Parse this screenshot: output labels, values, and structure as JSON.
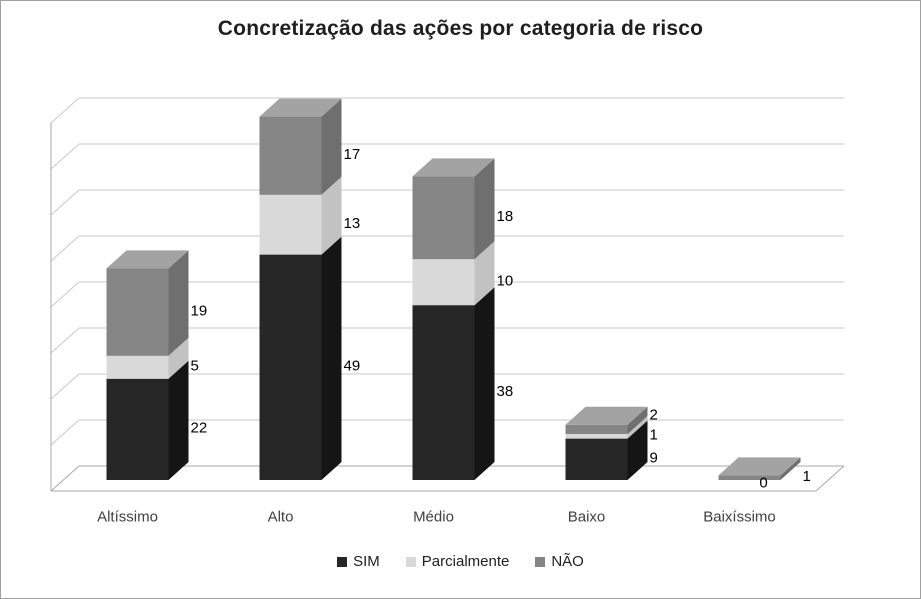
{
  "chart_data": {
    "type": "bar",
    "variant": "stacked-column-3d",
    "title": "Concretização das ações por categoria de risco",
    "categories": [
      "Altíssimo",
      "Alto",
      "Médio",
      "Baixo",
      "Baixíssimo"
    ],
    "series": [
      {
        "name": "SIM",
        "color": "#262626",
        "top": "#484848",
        "side": "#151515",
        "values": [
          22,
          49,
          38,
          9,
          0
        ]
      },
      {
        "name": "Parcialmente",
        "color": "#d9d9d9",
        "top": "#eaeaea",
        "side": "#c2c2c2",
        "values": [
          5,
          13,
          10,
          1,
          0
        ]
      },
      {
        "name": "NÃO",
        "color": "#858585",
        "top": "#a3a3a3",
        "side": "#6f6f6f",
        "values": [
          19,
          17,
          18,
          2,
          1
        ]
      }
    ],
    "xlabel": "",
    "ylabel": "",
    "ylim": [
      0,
      80
    ],
    "gridline_step": 10,
    "gridlines": true,
    "legend_position": "bottom",
    "data_labels": true
  }
}
